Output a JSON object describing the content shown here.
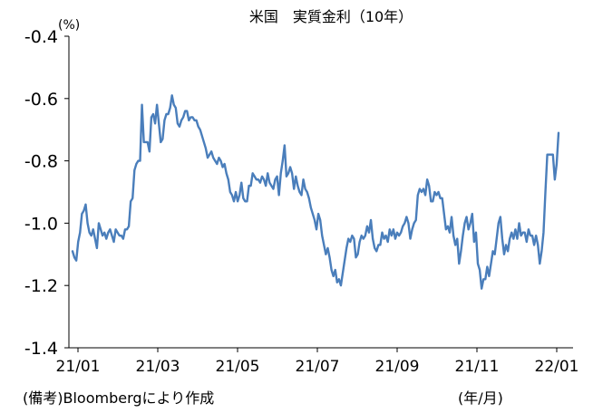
{
  "chart_data": {
    "type": "line",
    "title": "米国　実質金利（10年）",
    "unit_label": "(%)",
    "xlabel": "(年/月)",
    "source": "(備考)Bloombergにより作成",
    "ylim": [
      -1.4,
      -0.4
    ],
    "yticks": [
      "-0.4",
      "-0.6",
      "-0.8",
      "-1.0",
      "-1.2",
      "-1.4"
    ],
    "ytick_values": [
      -0.4,
      -0.6,
      -0.8,
      -1.0,
      -1.2,
      -1.4
    ],
    "xticks": [
      "21/01",
      "21/03",
      "21/05",
      "21/07",
      "21/09",
      "21/11",
      "22/01"
    ],
    "line_color": "#4a7ebb",
    "grid": false,
    "series": [
      {
        "values": [
          -1.09,
          -1.11,
          -1.12,
          -1.06,
          -1.03,
          -0.97,
          -0.96,
          -0.94,
          -1.0,
          -1.03,
          -1.04,
          -1.02,
          -1.05,
          -1.08,
          -1.0,
          -1.02,
          -1.04,
          -1.03,
          -1.05,
          -1.03,
          -1.02,
          -1.04,
          -1.06,
          -1.02,
          -1.03,
          -1.04,
          -1.04,
          -1.05,
          -1.02,
          -1.02,
          -1.01,
          -0.93,
          -0.92,
          -0.83,
          -0.81,
          -0.8,
          -0.8,
          -0.62,
          -0.74,
          -0.74,
          -0.74,
          -0.77,
          -0.66,
          -0.65,
          -0.68,
          -0.62,
          -0.68,
          -0.74,
          -0.73,
          -0.67,
          -0.65,
          -0.65,
          -0.63,
          -0.59,
          -0.62,
          -0.63,
          -0.68,
          -0.69,
          -0.67,
          -0.66,
          -0.64,
          -0.64,
          -0.67,
          -0.66,
          -0.66,
          -0.67,
          -0.67,
          -0.69,
          -0.7,
          -0.72,
          -0.74,
          -0.76,
          -0.79,
          -0.78,
          -0.77,
          -0.79,
          -0.8,
          -0.81,
          -0.79,
          -0.8,
          -0.82,
          -0.81,
          -0.84,
          -0.86,
          -0.9,
          -0.91,
          -0.93,
          -0.9,
          -0.93,
          -0.91,
          -0.87,
          -0.92,
          -0.93,
          -0.93,
          -0.88,
          -0.88,
          -0.84,
          -0.85,
          -0.86,
          -0.86,
          -0.87,
          -0.85,
          -0.86,
          -0.88,
          -0.84,
          -0.87,
          -0.88,
          -0.89,
          -0.86,
          -0.85,
          -0.91,
          -0.84,
          -0.8,
          -0.75,
          -0.85,
          -0.84,
          -0.82,
          -0.84,
          -0.89,
          -0.85,
          -0.88,
          -0.9,
          -0.91,
          -0.86,
          -0.89,
          -0.9,
          -0.92,
          -0.95,
          -0.97,
          -0.99,
          -1.02,
          -0.97,
          -0.99,
          -1.04,
          -1.07,
          -1.1,
          -1.08,
          -1.11,
          -1.15,
          -1.17,
          -1.15,
          -1.19,
          -1.18,
          -1.2,
          -1.16,
          -1.12,
          -1.08,
          -1.05,
          -1.06,
          -1.04,
          -1.05,
          -1.11,
          -1.1,
          -1.06,
          -1.04,
          -1.05,
          -1.04,
          -1.01,
          -1.03,
          -0.99,
          -1.05,
          -1.08,
          -1.09,
          -1.07,
          -1.07,
          -1.03,
          -1.05,
          -1.04,
          -1.06,
          -1.02,
          -1.04,
          -1.02,
          -1.05,
          -1.03,
          -1.04,
          -1.03,
          -1.01,
          -1.0,
          -0.98,
          -1.0,
          -1.05,
          -1.02,
          -1.0,
          -0.99,
          -0.91,
          -0.89,
          -0.9,
          -0.89,
          -0.91,
          -0.86,
          -0.88,
          -0.93,
          -0.93,
          -0.9,
          -0.91,
          -0.9,
          -0.92,
          -0.92,
          -0.97,
          -1.02,
          -1.01,
          -1.03,
          -0.98,
          -1.04,
          -1.07,
          -1.05,
          -1.13,
          -1.09,
          -1.04,
          -1.0,
          -0.98,
          -1.02,
          -1.0,
          -0.97,
          -1.06,
          -1.03,
          -1.13,
          -1.15,
          -1.21,
          -1.18,
          -1.18,
          -1.14,
          -1.17,
          -1.13,
          -1.09,
          -1.1,
          -1.05,
          -1.0,
          -0.98,
          -1.05,
          -1.1,
          -1.07,
          -1.09,
          -1.05,
          -1.03,
          -1.05,
          -1.02,
          -1.05,
          -1.0,
          -1.04,
          -1.03,
          -1.03,
          -1.06,
          -1.02,
          -1.04,
          -1.04,
          -1.07,
          -1.04,
          -1.07,
          -1.13,
          -1.09,
          -1.03,
          -0.9,
          -0.78,
          -0.78,
          -0.78,
          -0.78,
          -0.86,
          -0.81,
          -0.71
        ]
      }
    ]
  }
}
